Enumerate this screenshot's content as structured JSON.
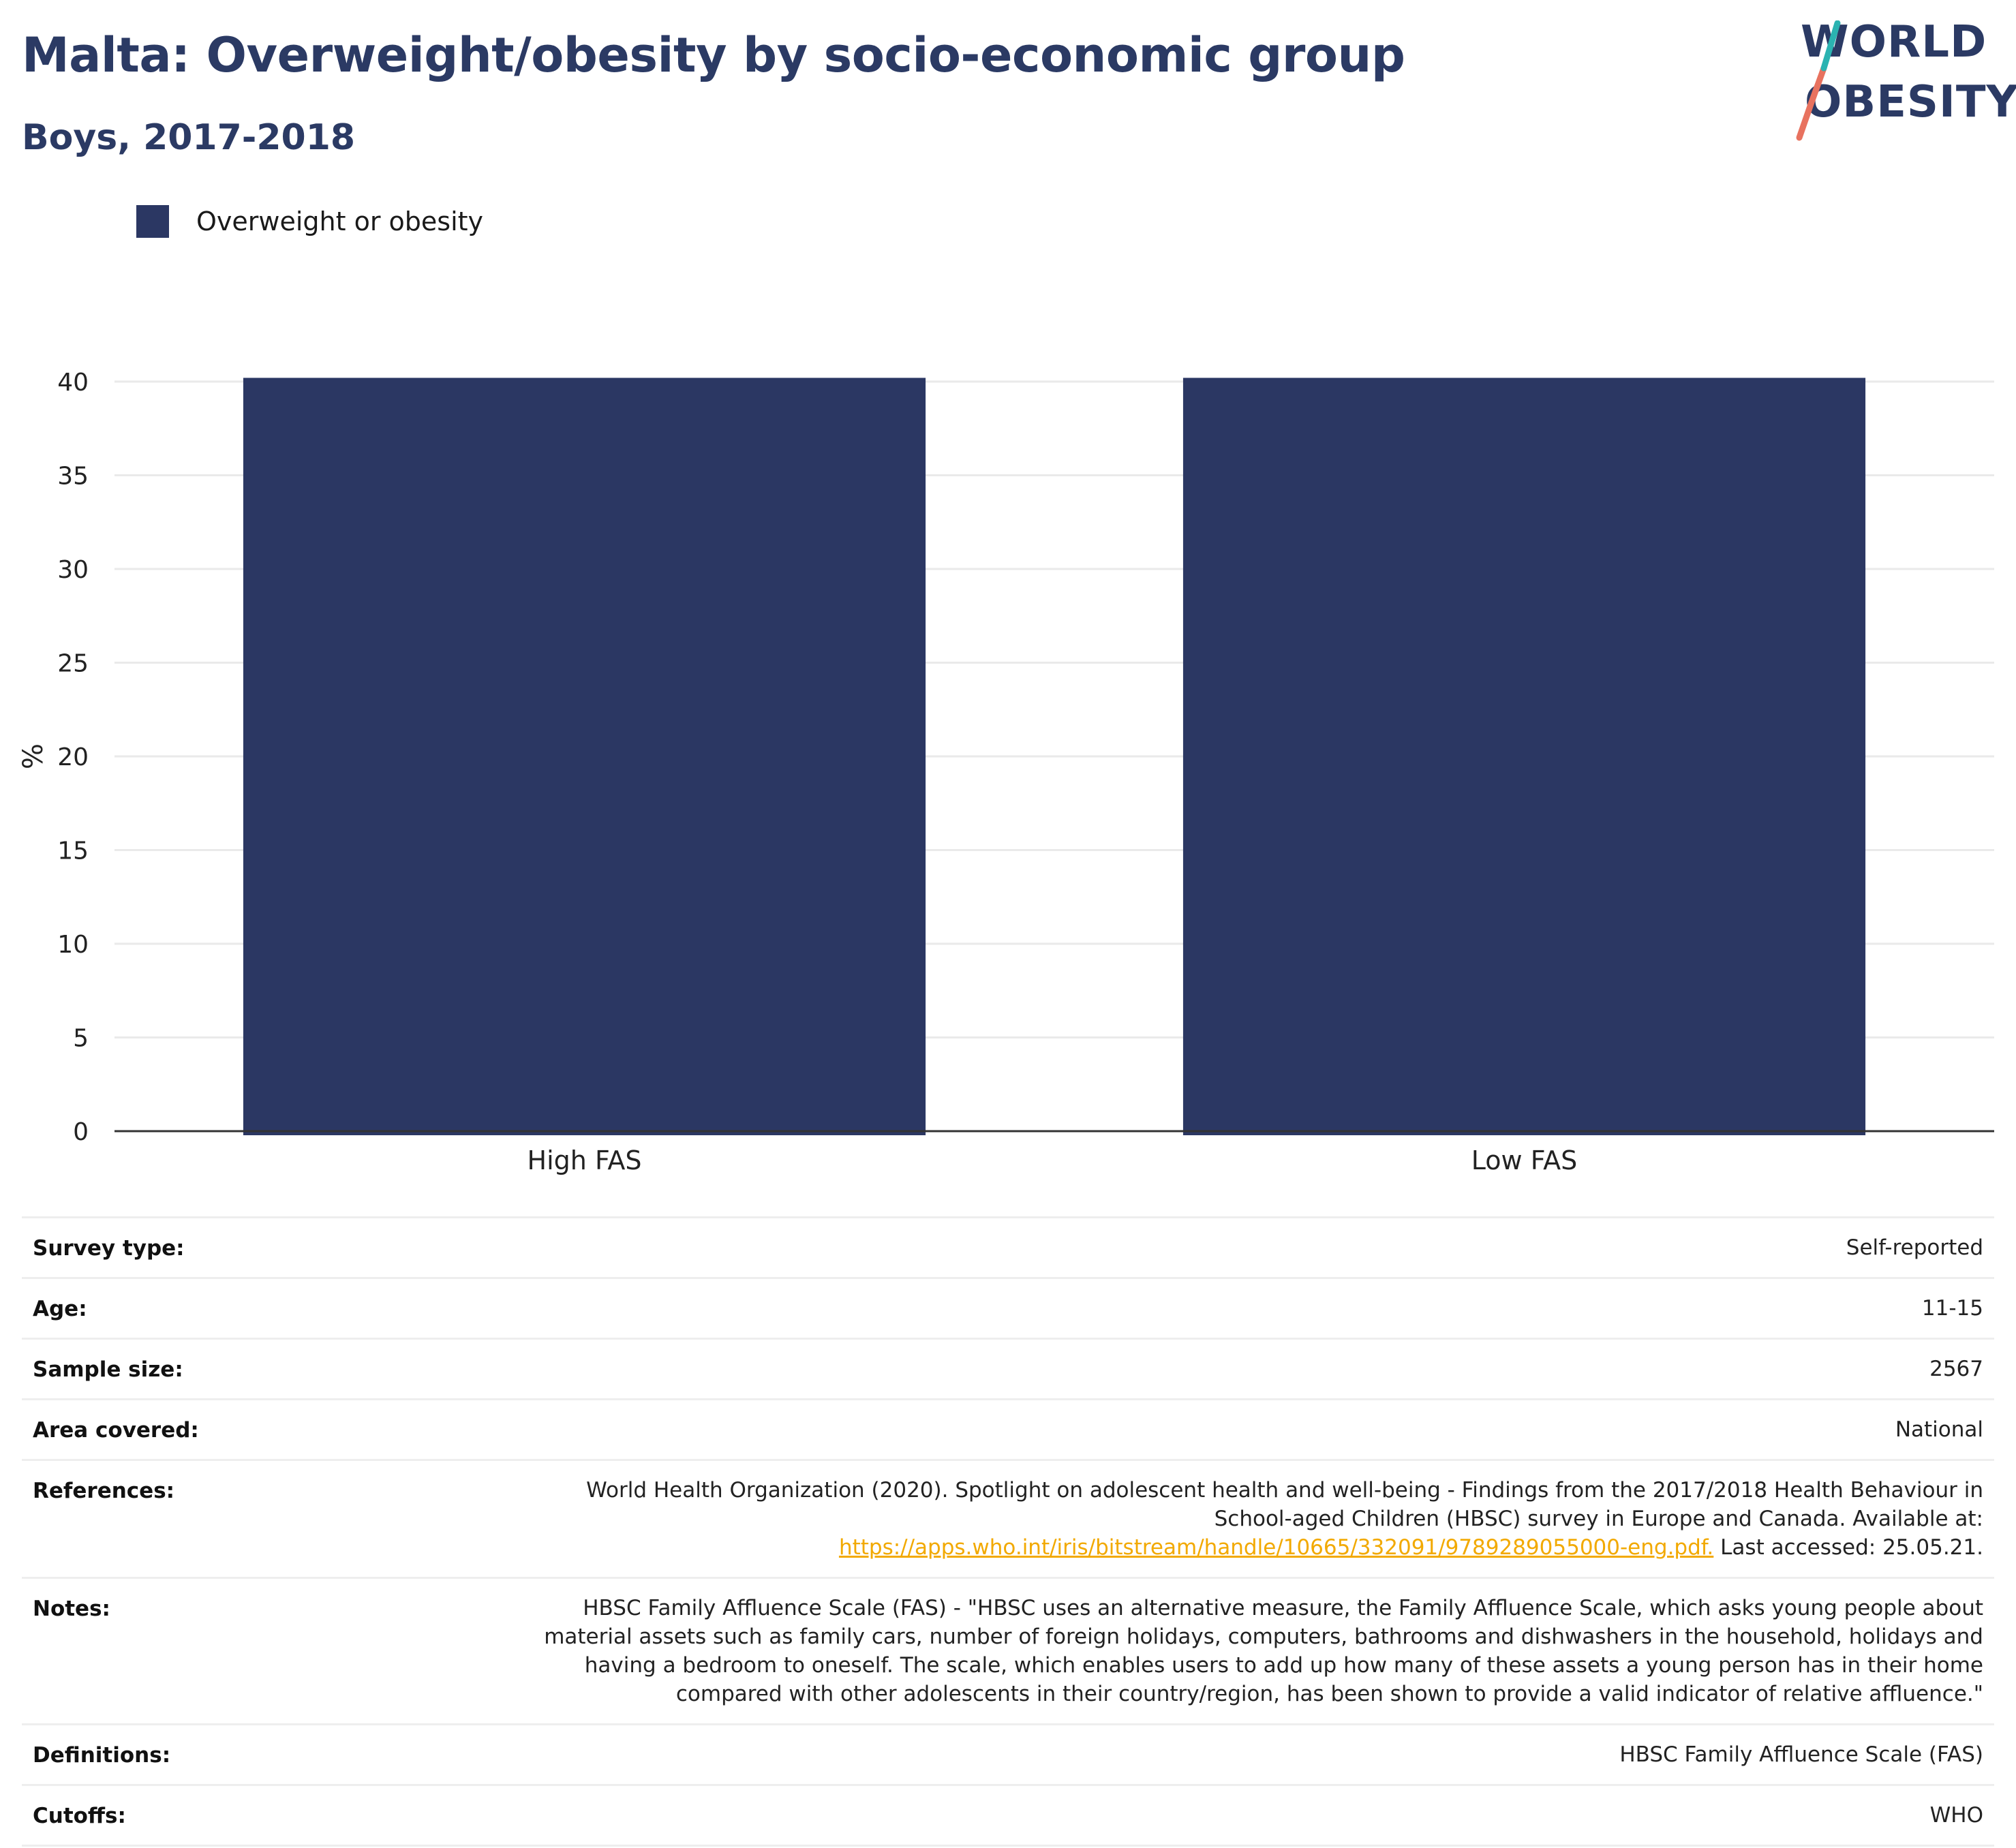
{
  "title": "Malta: Overweight/obesity by socio-economic group",
  "subtitle": "Boys, 2017-2018",
  "logo": {
    "line1": "WORLD",
    "line2": "OBESITY"
  },
  "colors": {
    "bar": "#2b3763",
    "title": "#2b3a64",
    "link": "#f2a900",
    "logo_teal": "#2bb3b1",
    "logo_coral": "#e8725f"
  },
  "legend": {
    "label": "Overweight or obesity"
  },
  "chart_data": {
    "type": "bar",
    "categories": [
      "High FAS",
      "Low FAS"
    ],
    "series": [
      {
        "name": "Overweight or obesity",
        "values": [
          40.2,
          40.2
        ]
      }
    ],
    "ylabel": "%",
    "xlabel": "",
    "ylim": [
      0,
      40
    ],
    "yticks": [
      0,
      5,
      10,
      15,
      20,
      25,
      30,
      35,
      40
    ],
    "grid": true,
    "legend_position": "top-left"
  },
  "meta": {
    "survey_type": {
      "label": "Survey type:",
      "value": "Self-reported"
    },
    "age": {
      "label": "Age:",
      "value": "11-15"
    },
    "sample_size": {
      "label": "Sample size:",
      "value": "2567"
    },
    "area_covered": {
      "label": "Area covered:",
      "value": "National"
    },
    "references": {
      "label": "References:",
      "line1": "World Health Organization (2020). Spotlight on adolescent health and well-being - Findings from the 2017/2018 Health Behaviour in",
      "line2": "School-aged Children (HBSC) survey in Europe and Canada. Available at:",
      "link": "https://apps.who.int/iris/bitstream/handle/10665/332091/9789289055000-eng.pdf.",
      "suffix": " Last accessed: 25.05.21."
    },
    "notes": {
      "label": "Notes:",
      "line1": "HBSC Family Affluence Scale (FAS) - \"HBSC uses an alternative measure, the Family Affluence Scale, which asks young people about",
      "line2": "material assets such as family cars, number of foreign holidays, computers, bathrooms and dishwashers in the household, holidays and",
      "line3": "having a bedroom to oneself. The scale, which enables users to add up how many of these assets a young person has in their home",
      "line4": "compared with other adolescents in their country/region, has been shown to provide a valid indicator of relative affluence.\""
    },
    "definitions": {
      "label": "Definitions:",
      "value": "HBSC Family Affluence Scale (FAS)"
    },
    "cutoffs": {
      "label": "Cutoffs:",
      "value": "WHO"
    }
  }
}
